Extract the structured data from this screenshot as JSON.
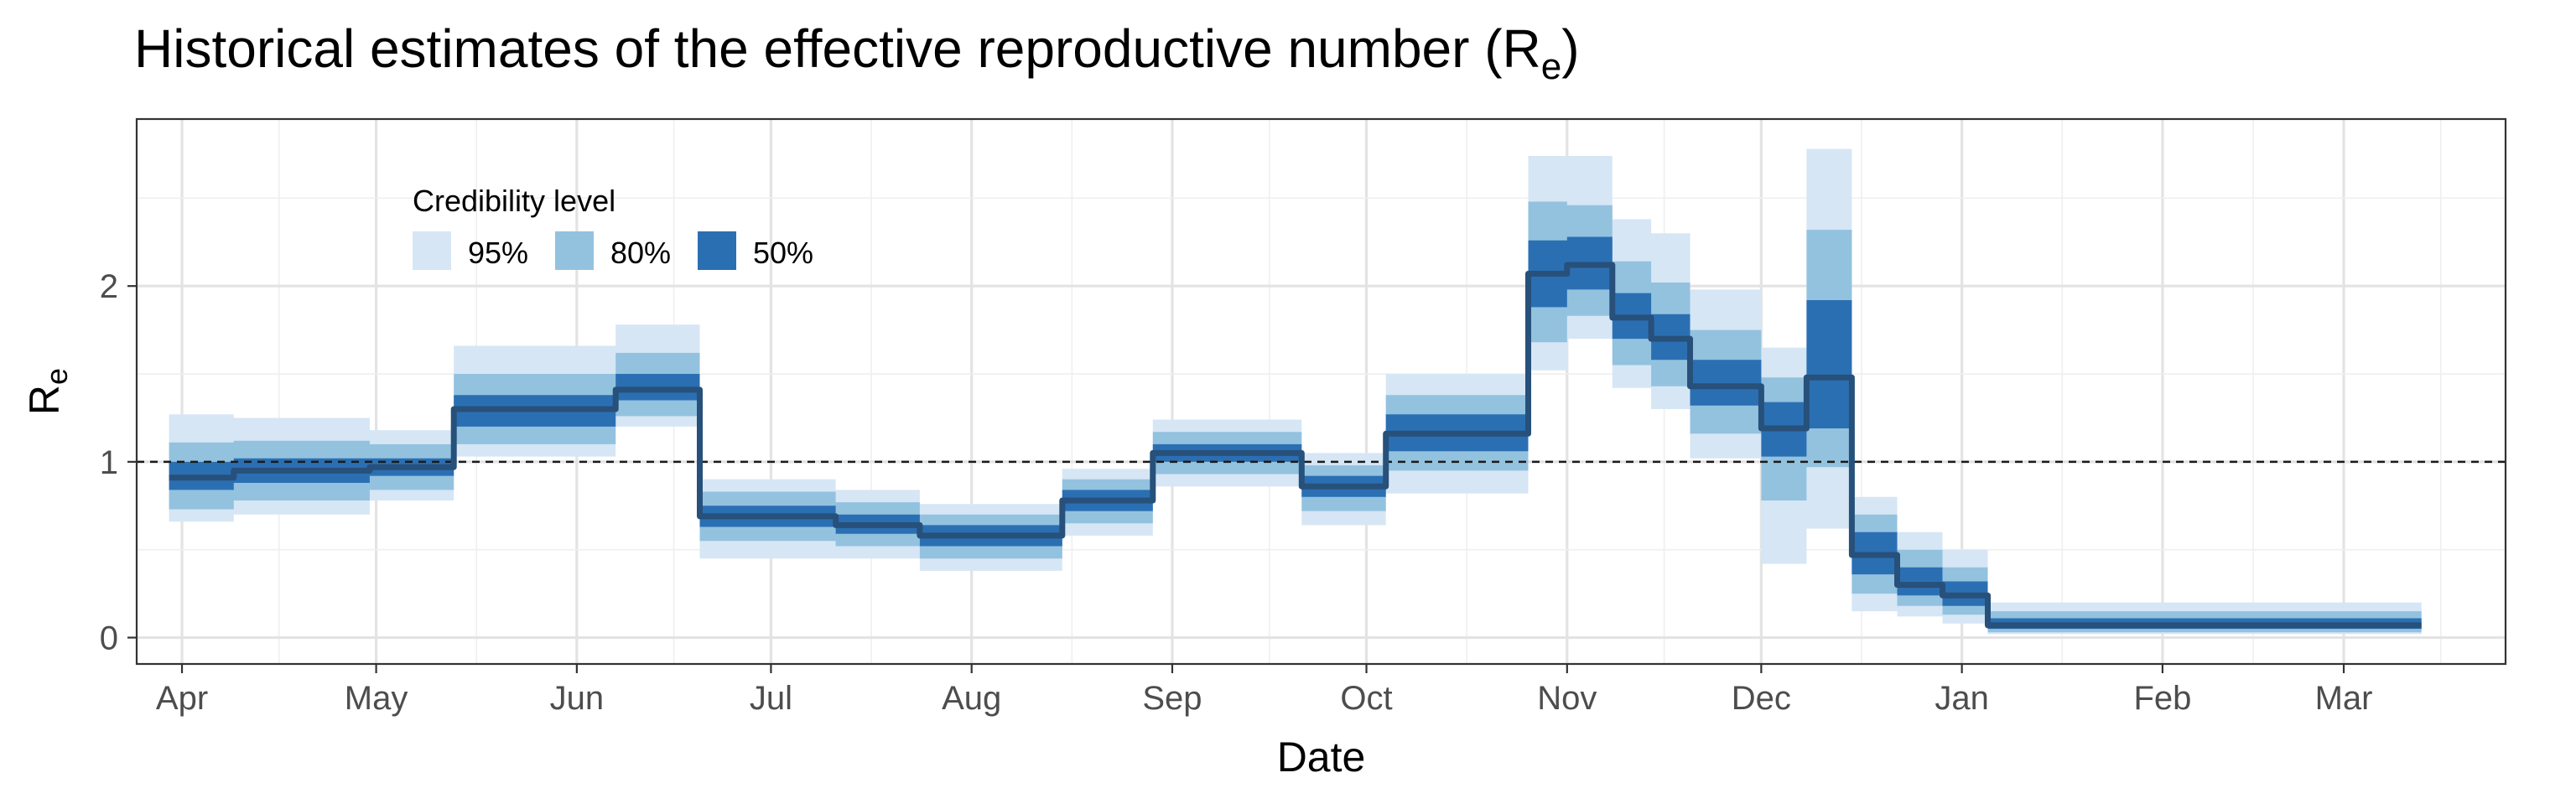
{
  "chart_data": {
    "type": "area",
    "title": "Historical estimates of the effective reproductive number (R",
    "title_subscript": "e",
    "title_suffix": ")",
    "xlabel": "Date",
    "ylabel": "R",
    "ylabel_subscript": "e",
    "xlim": [
      "2020-03-25",
      "2021-03-26"
    ],
    "ylim": [
      -0.15,
      2.95
    ],
    "y_ticks": [
      0,
      1,
      2
    ],
    "x_ticks": [
      {
        "date": "2020-04-01",
        "label": "Apr"
      },
      {
        "date": "2020-05-01",
        "label": "May"
      },
      {
        "date": "2020-06-01",
        "label": "Jun"
      },
      {
        "date": "2020-07-01",
        "label": "Jul"
      },
      {
        "date": "2020-08-01",
        "label": "Aug"
      },
      {
        "date": "2020-09-01",
        "label": "Sep"
      },
      {
        "date": "2020-10-01",
        "label": "Oct"
      },
      {
        "date": "2020-11-01",
        "label": "Nov"
      },
      {
        "date": "2020-12-01",
        "label": "Dec"
      },
      {
        "date": "2021-01-01",
        "label": "Jan"
      },
      {
        "date": "2021-02-01",
        "label": "Feb"
      },
      {
        "date": "2021-03-01",
        "label": "Mar"
      }
    ],
    "reference_line": 1,
    "grid": true,
    "legend": {
      "title": "Credibility level",
      "placement": "top-left",
      "items": [
        {
          "label": "95%",
          "color": "#d6e6f5"
        },
        {
          "label": "80%",
          "color": "#93c2df"
        },
        {
          "label": "50%",
          "color": "#2b6fb3"
        }
      ]
    },
    "median_color": "#27507a",
    "steps": [
      {
        "start": "2020-03-30",
        "end": "2020-04-09",
        "median": 0.91,
        "lo95": 0.66,
        "hi95": 1.27,
        "lo80": 0.73,
        "hi80": 1.11,
        "lo50": 0.84,
        "hi50": 1.0
      },
      {
        "start": "2020-04-09",
        "end": "2020-04-30",
        "median": 0.95,
        "lo95": 0.7,
        "hi95": 1.25,
        "lo80": 0.78,
        "hi80": 1.12,
        "lo50": 0.88,
        "hi50": 1.02
      },
      {
        "start": "2020-04-30",
        "end": "2020-05-13",
        "median": 0.97,
        "lo95": 0.78,
        "hi95": 1.18,
        "lo80": 0.84,
        "hi80": 1.1,
        "lo50": 0.92,
        "hi50": 1.02
      },
      {
        "start": "2020-05-13",
        "end": "2020-06-07",
        "median": 1.3,
        "lo95": 1.03,
        "hi95": 1.66,
        "lo80": 1.1,
        "hi80": 1.5,
        "lo50": 1.2,
        "hi50": 1.38
      },
      {
        "start": "2020-06-07",
        "end": "2020-06-20",
        "median": 1.41,
        "lo95": 1.2,
        "hi95": 1.78,
        "lo80": 1.26,
        "hi80": 1.62,
        "lo50": 1.35,
        "hi50": 1.5
      },
      {
        "start": "2020-06-20",
        "end": "2020-07-11",
        "median": 0.69,
        "lo95": 0.45,
        "hi95": 0.9,
        "lo80": 0.55,
        "hi80": 0.83,
        "lo50": 0.63,
        "hi50": 0.75
      },
      {
        "start": "2020-07-11",
        "end": "2020-07-24",
        "median": 0.64,
        "lo95": 0.45,
        "hi95": 0.84,
        "lo80": 0.52,
        "hi80": 0.77,
        "lo50": 0.59,
        "hi50": 0.7
      },
      {
        "start": "2020-07-24",
        "end": "2020-08-15",
        "median": 0.58,
        "lo95": 0.38,
        "hi95": 0.76,
        "lo80": 0.45,
        "hi80": 0.7,
        "lo50": 0.52,
        "hi50": 0.64
      },
      {
        "start": "2020-08-15",
        "end": "2020-08-29",
        "median": 0.78,
        "lo95": 0.58,
        "hi95": 0.96,
        "lo80": 0.65,
        "hi80": 0.9,
        "lo50": 0.72,
        "hi50": 0.84
      },
      {
        "start": "2020-08-29",
        "end": "2020-09-21",
        "median": 1.05,
        "lo95": 0.86,
        "hi95": 1.24,
        "lo80": 0.93,
        "hi80": 1.17,
        "lo50": 1.0,
        "hi50": 1.1
      },
      {
        "start": "2020-09-21",
        "end": "2020-10-04",
        "median": 0.86,
        "lo95": 0.64,
        "hi95": 1.05,
        "lo80": 0.72,
        "hi80": 0.98,
        "lo50": 0.8,
        "hi50": 0.92
      },
      {
        "start": "2020-10-04",
        "end": "2020-10-26",
        "median": 1.16,
        "lo95": 0.82,
        "hi95": 1.5,
        "lo80": 0.95,
        "hi80": 1.38,
        "lo50": 1.06,
        "hi50": 1.27
      },
      {
        "start": "2020-10-26",
        "end": "2020-11-01",
        "median": 2.07,
        "lo95": 1.52,
        "hi95": 2.74,
        "lo80": 1.68,
        "hi80": 2.48,
        "lo50": 1.88,
        "hi50": 2.26
      },
      {
        "start": "2020-11-01",
        "end": "2020-11-08",
        "median": 2.12,
        "lo95": 1.7,
        "hi95": 2.74,
        "lo80": 1.83,
        "hi80": 2.46,
        "lo50": 1.98,
        "hi50": 2.28
      },
      {
        "start": "2020-11-08",
        "end": "2020-11-14",
        "median": 1.82,
        "lo95": 1.42,
        "hi95": 2.38,
        "lo80": 1.55,
        "hi80": 2.14,
        "lo50": 1.7,
        "hi50": 1.96
      },
      {
        "start": "2020-11-14",
        "end": "2020-11-20",
        "median": 1.7,
        "lo95": 1.3,
        "hi95": 2.3,
        "lo80": 1.43,
        "hi80": 2.02,
        "lo50": 1.58,
        "hi50": 1.84
      },
      {
        "start": "2020-11-20",
        "end": "2020-12-01",
        "median": 1.43,
        "lo95": 1.02,
        "hi95": 1.98,
        "lo80": 1.16,
        "hi80": 1.75,
        "lo50": 1.32,
        "hi50": 1.58
      },
      {
        "start": "2020-12-01",
        "end": "2020-12-08",
        "median": 1.19,
        "lo95": 0.42,
        "hi95": 1.65,
        "lo80": 0.78,
        "hi80": 1.48,
        "lo50": 1.03,
        "hi50": 1.34
      },
      {
        "start": "2020-12-08",
        "end": "2020-12-15",
        "median": 1.48,
        "lo95": 0.62,
        "hi95": 2.78,
        "lo80": 0.97,
        "hi80": 2.32,
        "lo50": 1.19,
        "hi50": 1.92
      },
      {
        "start": "2020-12-15",
        "end": "2020-12-22",
        "median": 0.47,
        "lo95": 0.15,
        "hi95": 0.8,
        "lo80": 0.25,
        "hi80": 0.7,
        "lo50": 0.36,
        "hi50": 0.6
      },
      {
        "start": "2020-12-22",
        "end": "2020-12-29",
        "median": 0.3,
        "lo95": 0.12,
        "hi95": 0.6,
        "lo80": 0.18,
        "hi80": 0.5,
        "lo50": 0.24,
        "hi50": 0.4
      },
      {
        "start": "2020-12-29",
        "end": "2021-01-05",
        "median": 0.24,
        "lo95": 0.08,
        "hi95": 0.5,
        "lo80": 0.13,
        "hi80": 0.4,
        "lo50": 0.18,
        "hi50": 0.32
      },
      {
        "start": "2021-01-05",
        "end": "2021-03-13",
        "median": 0.07,
        "lo95": 0.02,
        "hi95": 0.2,
        "lo80": 0.03,
        "hi80": 0.15,
        "lo50": 0.05,
        "hi50": 0.11
      }
    ]
  }
}
